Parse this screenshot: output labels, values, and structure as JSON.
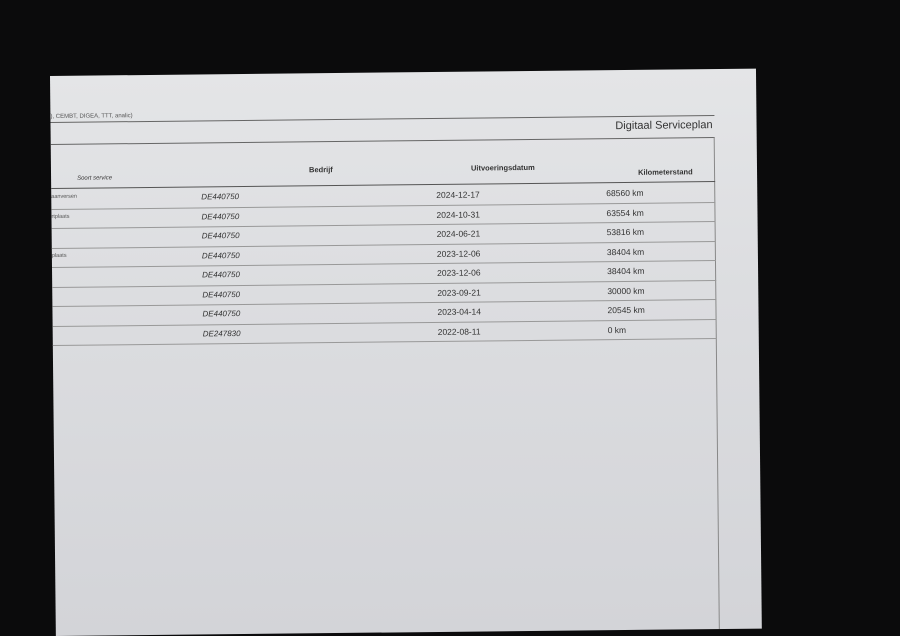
{
  "document": {
    "top_note": "), CEMBT, DIGEA, TTT, analic)",
    "title": "Digitaal Serviceplan",
    "columns": [
      "Soort service",
      "Bedrijf",
      "Uitvoeringsdatum",
      "Kilometerstand"
    ],
    "rows": [
      {
        "service": "aanversen",
        "company": "DE440750",
        "date": "2024-12-17",
        "km": "68560 km"
      },
      {
        "service": "rtplaats",
        "company": "DE440750",
        "date": "2024-10-31",
        "km": "63554 km"
      },
      {
        "service": "",
        "company": "DE440750",
        "date": "2024-06-21",
        "km": "53816 km"
      },
      {
        "service": "plaats",
        "company": "DE440750",
        "date": "2023-12-06",
        "km": "38404 km"
      },
      {
        "service": "",
        "company": "DE440750",
        "date": "2023-12-06",
        "km": "38404 km"
      },
      {
        "service": "",
        "company": "DE440750",
        "date": "2023-09-21",
        "km": "30000 km"
      },
      {
        "service": "",
        "company": "DE440750",
        "date": "2023-04-14",
        "km": "20545 km"
      },
      {
        "service": "",
        "company": "DE247830",
        "date": "2022-08-11",
        "km": "0 km"
      }
    ]
  }
}
